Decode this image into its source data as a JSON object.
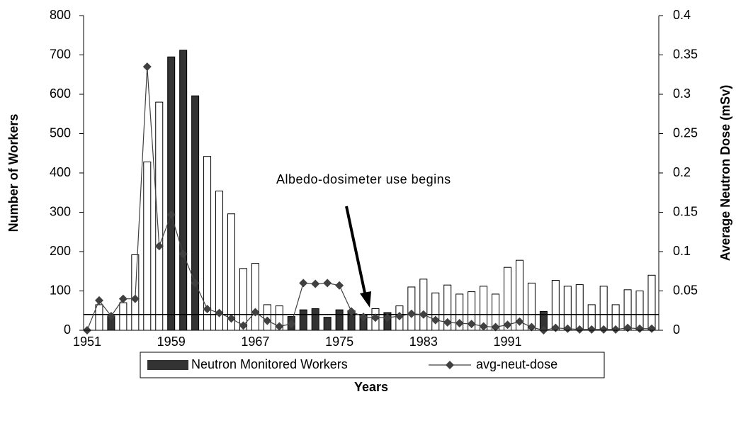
{
  "chart_data": {
    "type": "bar",
    "categories": [
      "1951",
      null,
      null,
      null,
      null,
      null,
      null,
      "1959",
      null,
      null,
      null,
      null,
      null,
      null,
      "1967",
      null,
      null,
      null,
      null,
      null,
      null,
      "1975",
      null,
      null,
      null,
      null,
      null,
      null,
      "1983",
      null,
      null,
      null,
      null,
      null,
      null,
      "1991",
      null,
      null,
      null,
      null,
      null,
      null,
      null,
      null,
      null,
      null,
      null,
      null
    ],
    "x_label": "Years",
    "y_label": "Number of Workers",
    "y2_label": "Average Neutron Dose (mSv)",
    "annotation": "Albedo-dosimeter use begins",
    "ylim": [
      0,
      800
    ],
    "yticks": [
      0,
      100,
      200,
      300,
      400,
      500,
      600,
      700,
      800
    ],
    "y2lim": [
      0,
      0.4
    ],
    "y2ticks": [
      0,
      0.05,
      0.1,
      0.15,
      0.2,
      0.25,
      0.3,
      0.35,
      0.4
    ],
    "reference_line": 40,
    "legend": "bottom",
    "series": [
      {
        "name": "Neutron Monitored Workers",
        "type": "bar",
        "color": "#333333",
        "values": [
          0,
          65,
          35,
          70,
          192,
          428,
          580,
          695,
          712,
          596,
          442,
          354,
          296,
          157,
          170,
          65,
          62,
          35,
          52,
          55,
          33,
          52,
          50,
          38,
          55,
          45,
          62,
          110,
          130,
          95,
          115,
          92,
          98,
          112,
          92,
          160,
          178,
          120,
          48,
          127,
          112,
          116,
          65,
          112,
          65,
          103,
          100,
          140
        ],
        "bar_colors": [
          "#ffffff",
          "#ffffff",
          "#333333",
          "#ffffff",
          "#ffffff",
          "#ffffff",
          "#ffffff",
          "#333333",
          "#333333",
          "#333333",
          "#ffffff",
          "#ffffff",
          "#ffffff",
          "#ffffff",
          "#ffffff",
          "#ffffff",
          "#ffffff",
          "#333333",
          "#333333",
          "#333333",
          "#333333",
          "#333333",
          "#333333",
          "#333333",
          "#ffffff",
          "#333333",
          "#ffffff",
          "#ffffff",
          "#ffffff",
          "#ffffff",
          "#ffffff",
          "#ffffff",
          "#ffffff",
          "#ffffff",
          "#ffffff",
          "#ffffff",
          "#ffffff",
          "#ffffff",
          "#333333",
          "#ffffff",
          "#ffffff",
          "#ffffff",
          "#ffffff",
          "#ffffff",
          "#ffffff",
          "#ffffff",
          "#ffffff",
          "#ffffff"
        ]
      },
      {
        "name": "avg-neut-dose",
        "type": "line",
        "axis": "y2",
        "color": "#404040",
        "values": [
          0,
          0.038,
          0.018,
          0.04,
          0.04,
          0.335,
          0.107,
          0.147,
          0.097,
          0.06,
          0.027,
          0.022,
          0.015,
          0.006,
          0.023,
          0.012,
          0.005,
          0.008,
          0.06,
          0.059,
          0.06,
          0.057,
          0.024,
          0.017,
          0.016,
          0.016,
          0.018,
          0.021,
          0.02,
          0.013,
          0.01,
          0.009,
          0.008,
          0.005,
          0.004,
          0.007,
          0.011,
          0.004,
          0,
          0.003,
          0.002,
          0.001,
          0.001,
          0.001,
          0.001,
          0.003,
          0.002,
          0.002
        ]
      }
    ]
  }
}
